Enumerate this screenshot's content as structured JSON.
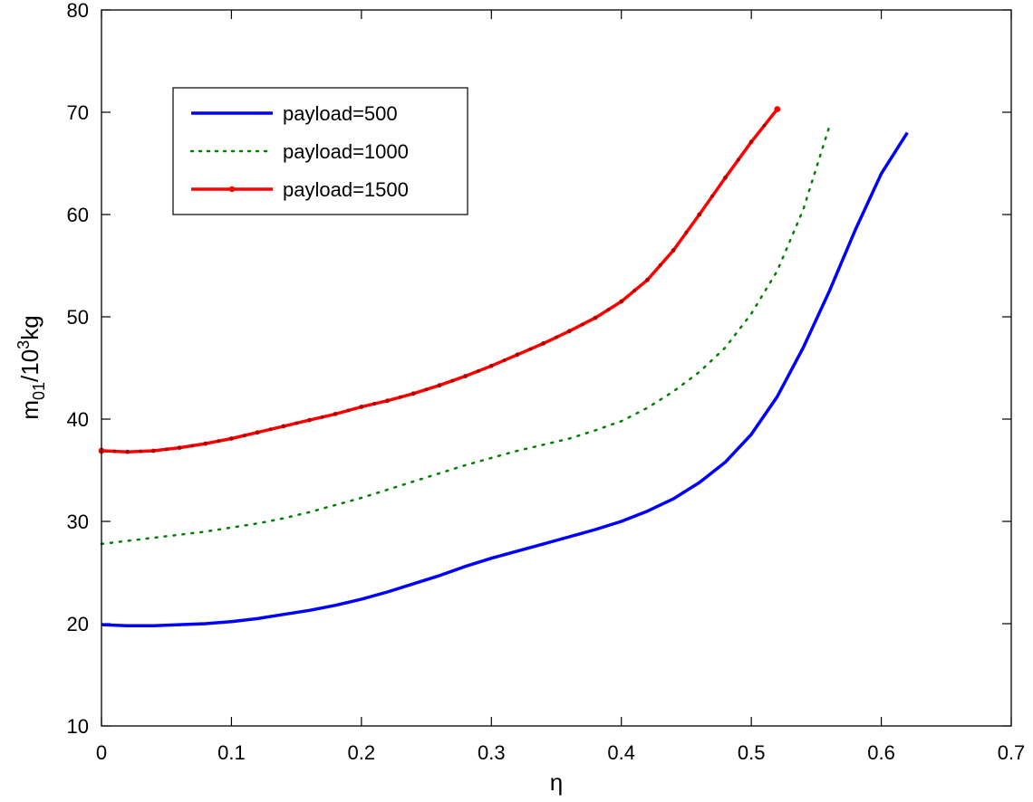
{
  "chart_data": {
    "type": "line",
    "title": "",
    "xlabel": "η",
    "ylabel_main": "m",
    "ylabel_sub": "01",
    "ylabel_mid": "/10",
    "ylabel_sup": "3",
    "ylabel_tail": "kg",
    "xlim": [
      0,
      0.7
    ],
    "ylim": [
      10,
      80
    ],
    "xticks": [
      "0",
      "0.1",
      "0.2",
      "0.3",
      "0.4",
      "0.5",
      "0.6",
      "0.7"
    ],
    "yticks": [
      "10",
      "20",
      "30",
      "40",
      "50",
      "60",
      "70",
      "80"
    ],
    "grid": false,
    "legend_position": "top-left",
    "series": [
      {
        "name": "payload=500",
        "color": "#0000ff",
        "style": "solid",
        "points": [
          [
            0,
            19.9
          ],
          [
            0.02,
            19.8
          ],
          [
            0.04,
            19.8
          ],
          [
            0.06,
            19.9
          ],
          [
            0.08,
            20.0
          ],
          [
            0.1,
            20.2
          ],
          [
            0.12,
            20.5
          ],
          [
            0.14,
            20.9
          ],
          [
            0.16,
            21.3
          ],
          [
            0.18,
            21.8
          ],
          [
            0.2,
            22.4
          ],
          [
            0.22,
            23.1
          ],
          [
            0.24,
            23.9
          ],
          [
            0.26,
            24.7
          ],
          [
            0.28,
            25.6
          ],
          [
            0.3,
            26.4
          ],
          [
            0.32,
            27.1
          ],
          [
            0.34,
            27.8
          ],
          [
            0.36,
            28.5
          ],
          [
            0.38,
            29.2
          ],
          [
            0.4,
            30.0
          ],
          [
            0.42,
            31.0
          ],
          [
            0.44,
            32.2
          ],
          [
            0.46,
            33.8
          ],
          [
            0.48,
            35.8
          ],
          [
            0.5,
            38.5
          ],
          [
            0.52,
            42.2
          ],
          [
            0.54,
            47.0
          ],
          [
            0.56,
            52.5
          ],
          [
            0.58,
            58.5
          ],
          [
            0.6,
            64.0
          ],
          [
            0.62,
            68.0
          ]
        ]
      },
      {
        "name": "payload=1000",
        "color": "#008000",
        "style": "dotted",
        "points": [
          [
            0,
            27.8
          ],
          [
            0.02,
            28.1
          ],
          [
            0.04,
            28.4
          ],
          [
            0.06,
            28.7
          ],
          [
            0.08,
            29.0
          ],
          [
            0.1,
            29.4
          ],
          [
            0.12,
            29.8
          ],
          [
            0.14,
            30.3
          ],
          [
            0.16,
            30.9
          ],
          [
            0.18,
            31.6
          ],
          [
            0.2,
            32.3
          ],
          [
            0.22,
            33.1
          ],
          [
            0.24,
            33.9
          ],
          [
            0.26,
            34.7
          ],
          [
            0.28,
            35.5
          ],
          [
            0.3,
            36.2
          ],
          [
            0.32,
            36.9
          ],
          [
            0.34,
            37.5
          ],
          [
            0.36,
            38.1
          ],
          [
            0.38,
            38.9
          ],
          [
            0.4,
            39.8
          ],
          [
            0.42,
            41.1
          ],
          [
            0.44,
            42.7
          ],
          [
            0.46,
            44.6
          ],
          [
            0.48,
            47.0
          ],
          [
            0.5,
            50.3
          ],
          [
            0.52,
            54.5
          ],
          [
            0.54,
            60.5
          ],
          [
            0.56,
            68.6
          ]
        ]
      },
      {
        "name": "payload=1500",
        "color": "#ff0000",
        "style": "solid-with-dots",
        "points": [
          [
            0,
            36.9
          ],
          [
            0.02,
            36.8
          ],
          [
            0.04,
            36.9
          ],
          [
            0.06,
            37.2
          ],
          [
            0.08,
            37.6
          ],
          [
            0.1,
            38.1
          ],
          [
            0.12,
            38.7
          ],
          [
            0.14,
            39.3
          ],
          [
            0.16,
            39.9
          ],
          [
            0.18,
            40.5
          ],
          [
            0.2,
            41.2
          ],
          [
            0.22,
            41.8
          ],
          [
            0.24,
            42.5
          ],
          [
            0.26,
            43.3
          ],
          [
            0.28,
            44.2
          ],
          [
            0.3,
            45.2
          ],
          [
            0.32,
            46.3
          ],
          [
            0.34,
            47.4
          ],
          [
            0.36,
            48.6
          ],
          [
            0.38,
            49.9
          ],
          [
            0.4,
            51.5
          ],
          [
            0.42,
            53.6
          ],
          [
            0.44,
            56.5
          ],
          [
            0.46,
            60.0
          ],
          [
            0.48,
            63.6
          ],
          [
            0.5,
            67.1
          ],
          [
            0.52,
            70.3
          ]
        ]
      }
    ]
  }
}
